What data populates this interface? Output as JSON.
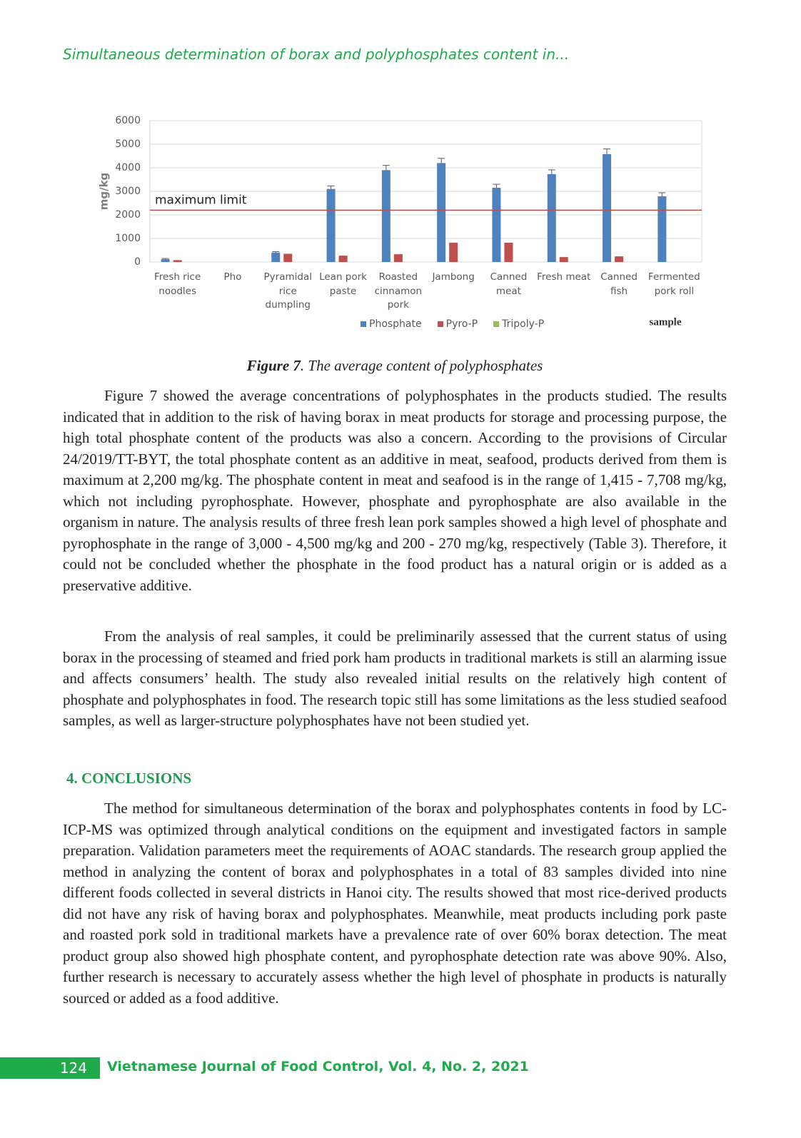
{
  "header": {
    "running_title": "Simultaneous determination of borax and polyphosphates content in..."
  },
  "chart_data": {
    "type": "bar",
    "y_label": "mg/kg",
    "x_label": "sample",
    "categories": [
      "Fresh rice noodles",
      "Pho",
      "Pyramidal rice dumpling",
      "Lean pork paste",
      "Roasted cinnamon pork",
      "Jambong",
      "Canned meat",
      "Fresh meat",
      "Canned fish",
      "Fermented pork roll"
    ],
    "series": [
      {
        "name": "Phosphate",
        "color": "#4f81bd",
        "values": [
          120,
          0,
          400,
          3100,
          3900,
          4200,
          3150,
          3730,
          4580,
          2790
        ],
        "errors": [
          30,
          null,
          40,
          130,
          200,
          200,
          150,
          180,
          220,
          150
        ]
      },
      {
        "name": "Pyro-P",
        "color": "#c0504d",
        "values": [
          80,
          0,
          350,
          270,
          330,
          820,
          820,
          210,
          240,
          0
        ]
      },
      {
        "name": "Tripoly-P",
        "color": "#9bbb59",
        "values": [
          0,
          0,
          0,
          0,
          0,
          0,
          0,
          0,
          0,
          0
        ]
      }
    ],
    "reference_line": {
      "value": 2200,
      "label": "maximum limit",
      "color": "#c0504d"
    },
    "ylim": [
      0,
      6000
    ],
    "yticks": [
      0,
      1000,
      2000,
      3000,
      4000,
      5000,
      6000
    ],
    "grid": true,
    "legend": "bottom"
  },
  "caption": {
    "label": "Figure 7",
    "text": ". The average content of polyphosphates"
  },
  "paragraphs": [
    "Figure 7 showed the average concentrations of polyphosphates in the products studied. The results indicated that in addition to the risk of having borax in meat products for storage and processing purpose, the high total phosphate content of the products was also a concern. According to the provisions of Circular 24/2019/TT-BYT, the total phosphate content as an additive in meat, seafood, products derived from them is maximum at 2,200 mg/kg. The phosphate content in meat and seafood is in the range of 1,415 - 7,708 mg/kg, which not including pyrophosphate. However, phosphate and pyrophosphate are also available in the organism in nature. The analysis results of three fresh lean pork samples showed a high level of phosphate and pyrophosphate in the range of 3,000 - 4,500 mg/kg and 200 - 270 mg/kg, respectively (Table 3). Therefore, it could not be concluded whether the phosphate in the food product has a natural origin or is added as a preservative additive.",
    "From the analysis of real samples, it could be preliminarily assessed that the current status of using borax in the processing of steamed and fried pork ham products in traditional markets is still an alarming issue and affects consumers’ health. The study also revealed initial results on the relatively high content of phosphate and polyphosphates in food. The research topic still has some limitations as the less studied seafood samples, as well as larger-structure polyphosphates have not been studied yet."
  ],
  "section": {
    "heading": "4. CONCLUSIONS",
    "paragraphs": [
      "The method for simultaneous determination of the borax and polyphosphates contents in food by LC-ICP-MS was optimized through analytical conditions on the equipment and investigated factors in sample preparation. Validation parameters meet the requirements of AOAC standards. The research group applied the method in analyzing the content of borax and polyphosphates in a total of 83 samples divided into nine different foods collected in several districts in Hanoi city. The results showed that most rice-derived products did not have any risk of having borax and polyphosphates. Meanwhile, meat products including pork paste and roasted pork sold in traditional markets have a prevalence rate of over 60% borax detection. The meat product group also showed high phosphate content, and pyrophosphate detection rate was above 90%. Also, further research is necessary to accurately assess whether the high level of phosphate in products is naturally sourced or added as a food additive."
    ]
  },
  "footer": {
    "page": "124",
    "journal": "Vietnamese Journal of Food Control, Vol. 4, No. 2, 2021"
  }
}
